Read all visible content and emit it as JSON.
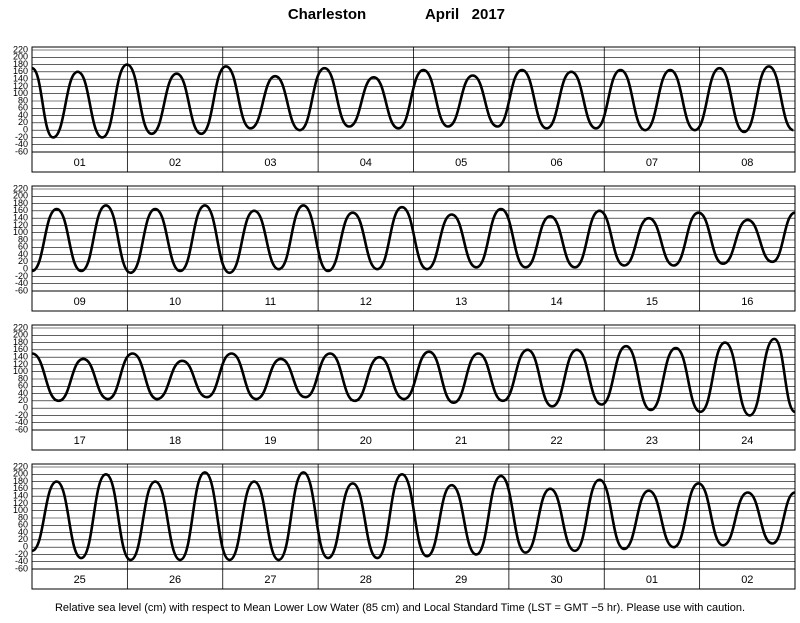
{
  "header": {
    "location": "Charleston",
    "period": "April   2017"
  },
  "chart_data": [
    {
      "type": "line",
      "categories": [
        "01",
        "02",
        "03",
        "04",
        "05",
        "06",
        "07",
        "08"
      ],
      "x": [
        0,
        5.3,
        11.5,
        17.7,
        23.9,
        30.1,
        36.4,
        42.6,
        48.8,
        55.0,
        61.2,
        67.4,
        73.6,
        79.8,
        86.0,
        92.2,
        98.5,
        104.7,
        110.9,
        117.1,
        123.3,
        129.5,
        135.7,
        141.9,
        148.1,
        154.3,
        160.6,
        166.8,
        173.0,
        179.2,
        185.4,
        191.6
      ],
      "values": [
        170,
        -20,
        160,
        -20,
        180,
        -10,
        155,
        -10,
        175,
        5,
        148,
        0,
        170,
        10,
        145,
        5,
        165,
        10,
        150,
        10,
        165,
        5,
        160,
        5,
        165,
        0,
        165,
        0,
        170,
        -5,
        175,
        0
      ],
      "xlim": [
        0,
        192
      ],
      "ylim": [
        -60,
        220
      ],
      "yticks": [
        -60,
        -40,
        -20,
        0,
        20,
        40,
        60,
        80,
        100,
        120,
        140,
        160,
        180,
        200,
        220
      ],
      "color": "#000000",
      "grid": true
    },
    {
      "type": "line",
      "categories": [
        "09",
        "10",
        "11",
        "12",
        "13",
        "14",
        "15",
        "16"
      ],
      "x": [
        0,
        6.2,
        12.4,
        18.6,
        24.8,
        31.0,
        37.3,
        43.5,
        49.7,
        55.9,
        62.1,
        68.3,
        74.5,
        80.7,
        86.9,
        93.1,
        99.4,
        105.6,
        111.8,
        118.0,
        124.2,
        130.4,
        136.6,
        142.8,
        149.0,
        155.2,
        161.5,
        167.7,
        173.9,
        180.1,
        186.3,
        192
      ],
      "values": [
        -5,
        165,
        -5,
        175,
        -10,
        165,
        -5,
        175,
        -10,
        160,
        0,
        175,
        -5,
        155,
        0,
        170,
        0,
        150,
        5,
        165,
        5,
        145,
        5,
        160,
        10,
        140,
        10,
        155,
        15,
        135,
        20,
        155
      ],
      "xlim": [
        0,
        192
      ],
      "ylim": [
        -60,
        220
      ],
      "yticks": [
        -60,
        -40,
        -20,
        0,
        20,
        40,
        60,
        80,
        100,
        120,
        140,
        160,
        180,
        200,
        220
      ],
      "color": "#000000",
      "grid": true
    },
    {
      "type": "line",
      "categories": [
        "17",
        "18",
        "19",
        "20",
        "21",
        "22",
        "23",
        "24"
      ],
      "x": [
        0,
        6.7,
        12.9,
        19.1,
        25.3,
        31.5,
        37.8,
        44.0,
        50.2,
        56.4,
        62.6,
        68.8,
        75.0,
        81.2,
        87.4,
        93.6,
        99.9,
        106.1,
        112.3,
        118.5,
        124.7,
        130.9,
        137.1,
        143.3,
        149.5,
        155.7,
        162.0,
        168.2,
        174.4,
        180.6,
        186.8,
        192
      ],
      "values": [
        150,
        20,
        135,
        25,
        150,
        25,
        130,
        30,
        150,
        25,
        135,
        30,
        150,
        20,
        140,
        25,
        155,
        15,
        150,
        20,
        160,
        5,
        160,
        10,
        170,
        -5,
        165,
        -10,
        180,
        -20,
        190,
        -10
      ],
      "xlim": [
        0,
        192
      ],
      "ylim": [
        -60,
        220
      ],
      "yticks": [
        -60,
        -40,
        -20,
        0,
        20,
        40,
        60,
        80,
        100,
        120,
        140,
        160,
        180,
        200,
        220
      ],
      "color": "#000000",
      "grid": true
    },
    {
      "type": "line",
      "categories": [
        "25",
        "26",
        "27",
        "28",
        "29",
        "30",
        "01",
        "02"
      ],
      "x": [
        0,
        6.2,
        12.4,
        18.6,
        24.8,
        31.0,
        37.3,
        43.5,
        49.7,
        55.9,
        62.1,
        68.3,
        74.5,
        80.7,
        86.9,
        93.1,
        99.4,
        105.6,
        111.8,
        118.0,
        124.2,
        130.4,
        136.6,
        142.8,
        149.0,
        155.2,
        161.5,
        167.7,
        173.9,
        180.1,
        186.3,
        192
      ],
      "values": [
        -10,
        180,
        -30,
        200,
        -35,
        180,
        -35,
        205,
        -35,
        180,
        -35,
        205,
        -30,
        175,
        -30,
        200,
        -25,
        170,
        -20,
        195,
        -15,
        160,
        -10,
        185,
        -5,
        155,
        0,
        175,
        5,
        150,
        10,
        150
      ],
      "xlim": [
        0,
        192
      ],
      "ylim": [
        -60,
        220
      ],
      "yticks": [
        -60,
        -40,
        -20,
        0,
        20,
        40,
        60,
        80,
        100,
        120,
        140,
        160,
        180,
        200,
        220
      ],
      "color": "#000000",
      "grid": true
    }
  ],
  "footer": "Relative sea level (cm) with respect to Mean Lower Low Water (85 cm) and Local Standard Time (LST = GMT −5 hr). Please use with caution."
}
